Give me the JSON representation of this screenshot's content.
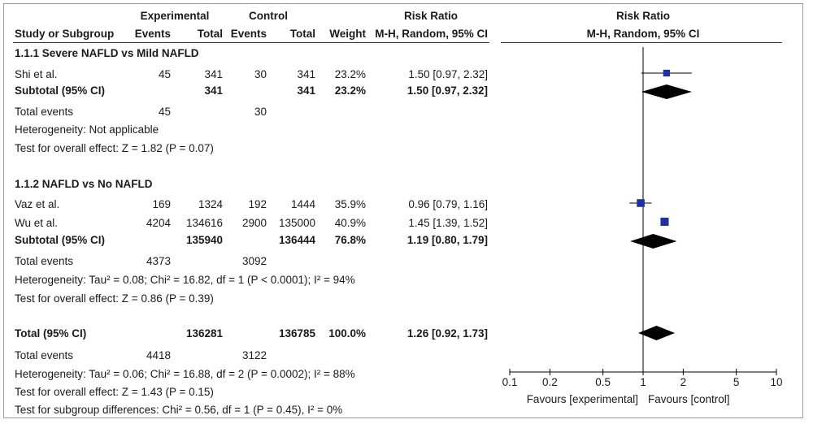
{
  "header": {
    "experimental": "Experimental",
    "control": "Control",
    "risk_ratio_left": "Risk Ratio",
    "risk_ratio_right": "Risk Ratio",
    "study_or_subgroup": "Study or Subgroup",
    "events_exp": "Events",
    "total_exp": "Total",
    "events_ctl": "Events",
    "total_ctl": "Total",
    "weight": "Weight",
    "method_left": "M-H, Random, 95% CI",
    "method_right": "M-H, Random, 95% CI"
  },
  "sub1": {
    "title": "1.1.1 Severe NAFLD vs Mild NAFLD",
    "studies": [
      {
        "name": "Shi et al.",
        "e_events": "45",
        "e_total": "341",
        "c_events": "30",
        "c_total": "341",
        "weight": "23.2%",
        "ci": "1.50 [0.97, 2.32]"
      }
    ],
    "subtotal": {
      "label": "Subtotal (95% CI)",
      "e_total": "341",
      "c_total": "341",
      "weight": "23.2%",
      "ci": "1.50 [0.97, 2.32]"
    },
    "total_events": {
      "label": "Total events",
      "exp": "45",
      "ctl": "30"
    },
    "heterogeneity": "Heterogeneity: Not applicable",
    "overall": "Test for overall effect: Z = 1.82 (P = 0.07)"
  },
  "sub2": {
    "title": "1.1.2 NAFLD vs No NAFLD",
    "studies": [
      {
        "name": "Vaz et al.",
        "e_events": "169",
        "e_total": "1324",
        "c_events": "192",
        "c_total": "1444",
        "weight": "35.9%",
        "ci": "0.96 [0.79, 1.16]"
      },
      {
        "name": "Wu et al.",
        "e_events": "4204",
        "e_total": "134616",
        "c_events": "2900",
        "c_total": "135000",
        "weight": "40.9%",
        "ci": "1.45 [1.39, 1.52]"
      }
    ],
    "subtotal": {
      "label": "Subtotal (95% CI)",
      "e_total": "135940",
      "c_total": "136444",
      "weight": "76.8%",
      "ci": "1.19 [0.80, 1.79]"
    },
    "total_events": {
      "label": "Total events",
      "exp": "4373",
      "ctl": "3092"
    },
    "heterogeneity": "Heterogeneity: Tau² = 0.08; Chi² = 16.82, df = 1 (P < 0.0001); I² = 94%",
    "overall": "Test for overall effect: Z = 0.86 (P = 0.39)"
  },
  "total": {
    "label": "Total (95% CI)",
    "e_total": "136281",
    "c_total": "136785",
    "weight": "100.0%",
    "ci": "1.26 [0.92, 1.73]",
    "total_events": {
      "label": "Total events",
      "exp": "4418",
      "ctl": "3122"
    },
    "heterogeneity": "Heterogeneity: Tau² = 0.06; Chi² = 16.88, df = 2 (P = 0.0002); I² = 88%",
    "overall": "Test for overall effect: Z = 1.43 (P = 0.15)",
    "subgroup_diff": "Test for subgroup differences: Chi² = 0.56, df = 1 (P = 0.45), I² = 0%"
  },
  "chart_data": {
    "type": "forest",
    "title": "Risk Ratio",
    "subtitle": "M-H, Random, 95% CI",
    "x_scale": "log",
    "xlim": [
      0.1,
      10
    ],
    "xticks": [
      0.1,
      0.2,
      0.5,
      1,
      2,
      5,
      10
    ],
    "xtick_labels": [
      "0.1",
      "0.2",
      "0.5",
      "1",
      "2",
      "5",
      "10"
    ],
    "favours_left": "Favours [experimental]",
    "favours_right": "Favours [control]",
    "studies": [
      {
        "name": "Shi et al.",
        "rr": 1.5,
        "lo": 0.97,
        "hi": 2.32,
        "weight": 23.2
      },
      {
        "name": "Vaz et al.",
        "rr": 0.96,
        "lo": 0.79,
        "hi": 1.16,
        "weight": 35.9
      },
      {
        "name": "Wu et al.",
        "rr": 1.45,
        "lo": 1.39,
        "hi": 1.52,
        "weight": 40.9
      }
    ],
    "pooled": [
      {
        "name": "Subtotal 1.1.1",
        "rr": 1.5,
        "lo": 0.97,
        "hi": 2.32
      },
      {
        "name": "Subtotal 1.1.2",
        "rr": 1.19,
        "lo": 0.8,
        "hi": 1.79
      },
      {
        "name": "Total",
        "rr": 1.26,
        "lo": 0.92,
        "hi": 1.73
      }
    ],
    "colors": {
      "marker": "#1f2f9e",
      "diamond": "#000000",
      "line": "#000000"
    }
  }
}
